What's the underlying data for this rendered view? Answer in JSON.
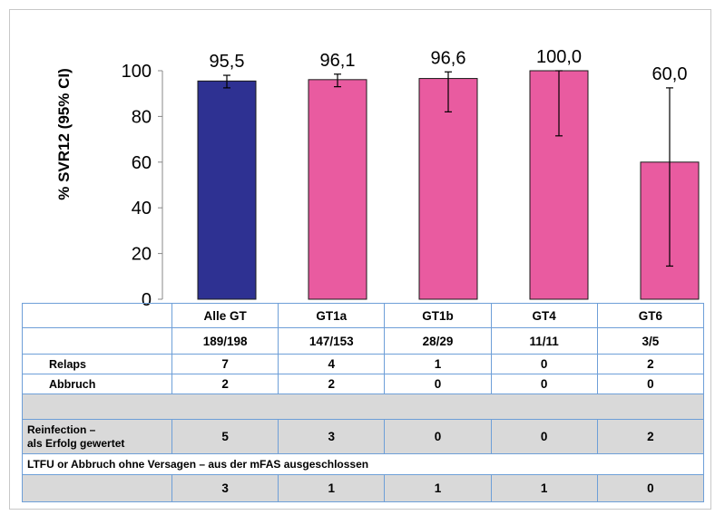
{
  "chart_data": {
    "type": "bar",
    "ylabel": "% SVR12 (95% CI)",
    "ylim": [
      0,
      100
    ],
    "yticks": [
      0,
      20,
      40,
      60,
      80,
      100
    ],
    "categories": [
      "Alle GT",
      "GT1a",
      "GT1b",
      "GT4",
      "GT6"
    ],
    "values": [
      95.5,
      96.1,
      96.6,
      100.0,
      60.0
    ],
    "value_labels": [
      "95,5",
      "96,1",
      "96,6",
      "100,0",
      "60,0"
    ],
    "ci_low": [
      92.5,
      93,
      82,
      71.5,
      14.5
    ],
    "ci_high": [
      98,
      98.5,
      99.5,
      100,
      92.5
    ],
    "colors": [
      "#2e3192",
      "#e95ba0",
      "#e95ba0",
      "#e95ba0",
      "#e95ba0"
    ],
    "grid": false
  },
  "table": {
    "categories": [
      "Alle GT",
      "GT1a",
      "GT1b",
      "GT4",
      "GT6"
    ],
    "counts": [
      "189/198",
      "147/153",
      "28/29",
      "11/11",
      "3/5"
    ],
    "relaps_label": "Relaps",
    "relaps": [
      "7",
      "4",
      "1",
      "0",
      "2"
    ],
    "abbruch_label": "Abbruch",
    "abbruch": [
      "2",
      "2",
      "0",
      "0",
      "0"
    ],
    "reinfection_label_1": "Reinfection –",
    "reinfection_label_2": "als Erfolg gewertet",
    "reinfection": [
      "5",
      "3",
      "0",
      "0",
      "2"
    ],
    "ltfu_label": "LTFU or Abbruch ohne Versagen – aus der mFAS ausgeschlossen",
    "ltfu": [
      "3",
      "1",
      "1",
      "1",
      "0"
    ]
  }
}
